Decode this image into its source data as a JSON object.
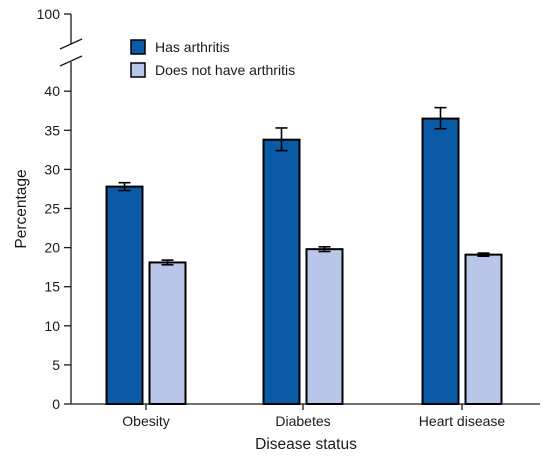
{
  "chart_data": {
    "type": "bar",
    "title": "",
    "xlabel": "Disease status",
    "ylabel": "Percentage",
    "categories": [
      "Obesity",
      "Diabetes",
      "Heart disease"
    ],
    "series": [
      {
        "name": "Has arthritis",
        "color": "#0a5aa5",
        "values": [
          27.8,
          33.8,
          36.5
        ],
        "ci_low": [
          27.3,
          32.4,
          35.2
        ],
        "ci_high": [
          28.3,
          35.3,
          37.9
        ]
      },
      {
        "name": "Does not have arthritis",
        "color": "#b9c6ea",
        "values": [
          18.1,
          19.8,
          19.1
        ],
        "ci_low": [
          17.8,
          19.5,
          18.9
        ],
        "ci_high": [
          18.4,
          20.1,
          19.3
        ]
      }
    ],
    "ylim": [
      0,
      100
    ],
    "axis_break": [
      40,
      100
    ],
    "yticks": [
      "0",
      "5",
      "10",
      "15",
      "20",
      "25",
      "30",
      "35",
      "40",
      "100"
    ],
    "legend_position": "top-left",
    "grid": false,
    "error_bars": true
  }
}
